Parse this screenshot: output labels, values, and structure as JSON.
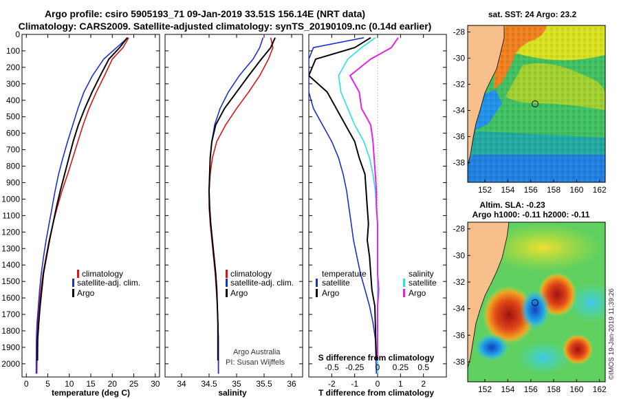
{
  "title": {
    "line1": "Argo profile: csiro 5905193_71 09-Jan-2019 33.51S 156.14E (NRT data)",
    "line2": "Climatology: CARS2009. Satellite-adjusted climatology: synTS_20190109.nc (0.14d earlier)"
  },
  "credits": {
    "group": "Argo Australia",
    "pi": "PI: Susan Wijffels",
    "imos": "©IMOS 19-Jan-2019 11:39:26"
  },
  "colors": {
    "climatology": "#dd1111",
    "satellite": "#1a2fd0",
    "argo": "#000000",
    "cyan": "#22e3e3",
    "magenta": "#e61ee6",
    "land": "#f7bf8c"
  },
  "chart_data": [
    {
      "type": "line",
      "name": "temperature-profile",
      "xlabel": "temperature (deg C)",
      "ylabel": "",
      "xlim": [
        -1,
        31
      ],
      "ylim": [
        2080,
        0
      ],
      "xticks": [
        "0",
        "5",
        "10",
        "15",
        "20",
        "25",
        "30"
      ],
      "xtick_values": [
        0,
        5,
        10,
        15,
        20,
        25,
        30
      ],
      "yticks": [
        "0",
        "100",
        "200",
        "300",
        "400",
        "500",
        "600",
        "700",
        "800",
        "900",
        "1000",
        "1100",
        "1200",
        "1300",
        "1400",
        "1500",
        "1600",
        "1700",
        "1800",
        "1900",
        "2000"
      ],
      "ytick_values": [
        0,
        100,
        200,
        300,
        400,
        500,
        600,
        700,
        800,
        900,
        1000,
        1100,
        1200,
        1300,
        1400,
        1500,
        1600,
        1700,
        1800,
        1900,
        2000
      ],
      "legend": [
        "climatology",
        "satellite-adj. clim.",
        "Argo"
      ],
      "series": [
        {
          "name": "climatology",
          "color": "#dd1111",
          "x": [
            23.8,
            22.5,
            20,
            18.2,
            16.3,
            14.6,
            13.2,
            12,
            10.8,
            9.6,
            8.3,
            7.2,
            6.2,
            5.3,
            4.6,
            3.9,
            3.4,
            3,
            2.7,
            2.55,
            2.45
          ],
          "y": [
            20,
            80,
            150,
            250,
            350,
            450,
            550,
            650,
            750,
            850,
            950,
            1050,
            1150,
            1250,
            1350,
            1450,
            1550,
            1650,
            1750,
            1850,
            2060
          ]
        },
        {
          "name": "satellite-adj. clim.",
          "color": "#1a2fd0",
          "x": [
            23.6,
            21,
            18,
            15.4,
            13.4,
            12,
            10.8,
            9.6,
            8.5,
            7.5,
            6.7,
            6,
            5.3,
            4.6,
            4,
            3.5,
            3.1,
            2.8,
            2.5,
            2.35,
            2.3
          ],
          "y": [
            20,
            80,
            150,
            250,
            350,
            450,
            550,
            650,
            750,
            850,
            950,
            1050,
            1150,
            1250,
            1350,
            1450,
            1550,
            1650,
            1750,
            1850,
            2060
          ]
        },
        {
          "name": "Argo",
          "color": "#000000",
          "x": [
            23.5,
            21.7,
            19.2,
            17.2,
            15.3,
            13.6,
            12.1,
            10.9,
            9.9,
            8.9,
            7.9,
            7,
            6.2,
            5.4,
            4.7,
            4,
            3.6,
            3.2,
            2.9,
            2.65,
            2.6
          ],
          "y": [
            20,
            80,
            150,
            250,
            350,
            450,
            550,
            650,
            750,
            850,
            950,
            1050,
            1150,
            1250,
            1350,
            1450,
            1550,
            1650,
            1750,
            1850,
            1980
          ]
        }
      ]
    },
    {
      "type": "line",
      "name": "salinity-profile",
      "xlabel": "salinity",
      "xlim": [
        33.7,
        36.2
      ],
      "ylim": [
        2080,
        0
      ],
      "xticks": [
        "34",
        "34.5",
        "35",
        "35.5",
        "36"
      ],
      "xtick_values": [
        34,
        34.5,
        35,
        35.5,
        36
      ],
      "legend": [
        "climatology",
        "satellite-adj. clim.",
        "Argo"
      ],
      "series": [
        {
          "name": "climatology",
          "color": "#dd1111",
          "x": [
            35.62,
            35.66,
            35.58,
            35.42,
            35.22,
            35.0,
            34.8,
            34.64,
            34.56,
            34.52,
            34.5,
            34.5,
            34.52,
            34.55,
            34.58,
            34.61,
            34.63,
            34.65,
            34.66,
            34.67,
            34.67
          ],
          "y": [
            20,
            80,
            150,
            250,
            350,
            450,
            550,
            650,
            750,
            850,
            950,
            1050,
            1150,
            1250,
            1350,
            1450,
            1550,
            1650,
            1750,
            1850,
            2060
          ]
        },
        {
          "name": "satellite-adj. clim.",
          "color": "#1a2fd0",
          "x": [
            35.48,
            35.42,
            35.3,
            35.05,
            34.85,
            34.7,
            34.6,
            34.55,
            34.52,
            34.51,
            34.5,
            34.51,
            34.53,
            34.56,
            34.59,
            34.62,
            34.64,
            34.65,
            34.66,
            34.67,
            34.67
          ],
          "y": [
            20,
            80,
            150,
            250,
            350,
            450,
            550,
            650,
            750,
            850,
            950,
            1050,
            1150,
            1250,
            1350,
            1450,
            1550,
            1650,
            1750,
            1850,
            2060
          ]
        },
        {
          "name": "Argo",
          "color": "#000000",
          "x": [
            35.7,
            35.62,
            35.45,
            35.22,
            35.0,
            34.78,
            34.62,
            34.55,
            34.52,
            34.51,
            34.5,
            34.51,
            34.53,
            34.56,
            34.59,
            34.62,
            34.64,
            34.65,
            34.66,
            34.66,
            34.66
          ],
          "y": [
            20,
            80,
            150,
            250,
            350,
            450,
            550,
            650,
            750,
            850,
            950,
            1050,
            1150,
            1250,
            1350,
            1450,
            1550,
            1650,
            1750,
            1850,
            1980
          ]
        }
      ]
    },
    {
      "type": "line",
      "name": "difference-profile",
      "xlabel": "T difference from climatology",
      "top_label": "S difference from climatology",
      "xlim": [
        -3,
        3
      ],
      "ylim": [
        2080,
        0
      ],
      "xticks": [
        "-2",
        "-1",
        "0",
        "1",
        "2"
      ],
      "xtick_values": [
        -2,
        -1,
        0,
        1,
        2
      ],
      "top_ticks": [
        "-0.5",
        "-0.25",
        "0",
        "0.25",
        "0.5"
      ],
      "top_tick_values": [
        -2,
        -1,
        0,
        1,
        2
      ],
      "legend_temperature": [
        "temperature",
        "satellite",
        "Argo"
      ],
      "legend_salinity": [
        "salinity",
        "satellite",
        "Argo"
      ],
      "series": [
        {
          "name": "T satellite",
          "color": "#1a2fd0",
          "x": [
            -0.6,
            -2.8,
            -3,
            -3,
            -3,
            -2.8,
            -2.4,
            -2,
            -1.7,
            -1.5,
            -1.35,
            -1.25,
            -1.15,
            -1.05,
            -0.9,
            -0.75,
            -0.55,
            -0.35,
            -0.2,
            -0.1,
            -0.05
          ],
          "y": [
            20,
            80,
            150,
            250,
            350,
            450,
            550,
            650,
            750,
            850,
            950,
            1050,
            1150,
            1250,
            1350,
            1450,
            1550,
            1650,
            1750,
            1850,
            2060
          ]
        },
        {
          "name": "T Argo",
          "color": "#000000",
          "x": [
            -0.3,
            -1.0,
            -2.7,
            -3,
            -2.2,
            -1.8,
            -1.4,
            -1.0,
            -0.8,
            -0.55,
            -0.5,
            -0.45,
            -0.4,
            -0.45,
            -0.35,
            -0.3,
            -0.25,
            -0.12,
            -0.1,
            -0.08,
            -0.05
          ],
          "y": [
            20,
            80,
            150,
            250,
            350,
            450,
            550,
            650,
            750,
            850,
            950,
            1050,
            1150,
            1250,
            1350,
            1450,
            1550,
            1650,
            1750,
            1850,
            1980
          ]
        },
        {
          "name": "S satellite",
          "color": "#22e3e3",
          "x": [
            -0.1,
            -0.7,
            -1.3,
            -1.7,
            -1.6,
            -1.3,
            -1.0,
            -0.6,
            -0.35,
            -0.2,
            -0.1,
            -0.05,
            0,
            0,
            0,
            0,
            0,
            0,
            0,
            0,
            0
          ],
          "y": [
            20,
            80,
            150,
            250,
            350,
            450,
            550,
            650,
            750,
            850,
            950,
            1050,
            1150,
            1250,
            1350,
            1450,
            1550,
            1650,
            1750,
            1850,
            2060
          ]
        },
        {
          "name": "S Argo",
          "color": "#e61ee6",
          "x": [
            0.9,
            0.6,
            -0.3,
            -1.2,
            -0.8,
            -0.7,
            -0.3,
            -0.2,
            -0.15,
            -0.1,
            -0.05,
            -0.05,
            0,
            0,
            0,
            0,
            0.05,
            0,
            0,
            0,
            0
          ],
          "y": [
            20,
            80,
            150,
            250,
            350,
            450,
            550,
            650,
            750,
            850,
            950,
            1050,
            1150,
            1250,
            1350,
            1450,
            1550,
            1650,
            1750,
            1850,
            1980
          ]
        }
      ]
    },
    {
      "type": "heatmap",
      "name": "sst-map",
      "title": "sat. SST: 24 Argo: 23.2",
      "xlim": [
        150.5,
        162.5
      ],
      "ylim": [
        -39.5,
        -27.5
      ],
      "xticks": [
        "152",
        "154",
        "156",
        "158",
        "160",
        "162"
      ],
      "xtick_values": [
        152,
        154,
        156,
        158,
        160,
        162
      ],
      "yticks": [
        "-28",
        "-30",
        "-32",
        "-34",
        "-36",
        "-38"
      ],
      "ytick_values": [
        -28,
        -30,
        -32,
        -34,
        -36,
        -38
      ],
      "argo_position": [
        156.14,
        -33.51
      ]
    },
    {
      "type": "heatmap",
      "name": "sla-map",
      "title": "Altim. SLA: -0.23",
      "subtitle": "Argo h1000: -0.11 h2000: -0.11",
      "xlim": [
        150.5,
        162.5
      ],
      "ylim": [
        -39.5,
        -27.5
      ],
      "xticks": [
        "152",
        "154",
        "156",
        "158",
        "160",
        "162"
      ],
      "xtick_values": [
        152,
        154,
        156,
        158,
        160,
        162
      ],
      "yticks": [
        "-28",
        "-30",
        "-32",
        "-34",
        "-36",
        "-38"
      ],
      "ytick_values": [
        -28,
        -30,
        -32,
        -34,
        -36,
        -38
      ],
      "argo_position": [
        156.14,
        -33.51
      ]
    }
  ]
}
